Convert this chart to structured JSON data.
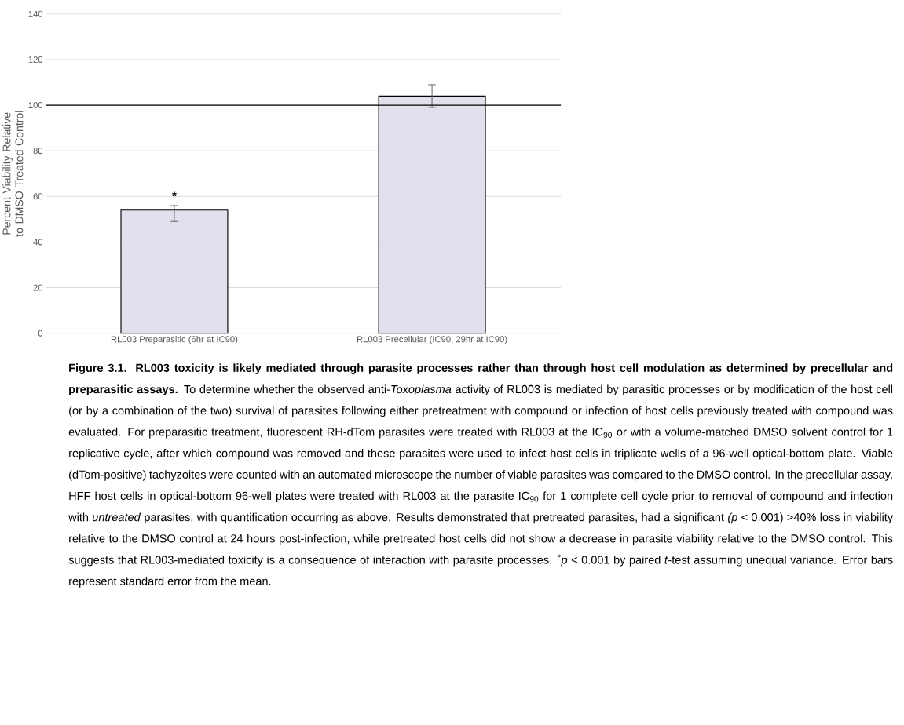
{
  "chart_data": {
    "type": "bar",
    "ylabel": "Percent Viability Relative to DMSO-Treated Control",
    "categories": [
      "RL003 Preparasitic (6hr at IC90)",
      "RL003 Precellular (IC90, 29hr at IC90)"
    ],
    "values": [
      54,
      104
    ],
    "color": "#e4dfec",
    "errors": [
      [
        49,
        56
      ],
      [
        99,
        109
      ]
    ],
    "ylim": [
      0,
      140
    ],
    "yticks": [
      0,
      20,
      40,
      60,
      80,
      100,
      120,
      140
    ],
    "grid": "y",
    "ref_lines": [
      {
        "axis": "y",
        "value": 100,
        "color": "#000000"
      }
    ],
    "annotations": [
      "*",
      "**Figure 3.1. RL003 toxicity is likely mediated through parasite processes rather than through host cell modulation as determined by precellular and preparasitic assays.** To determine whether the observed anti-*Toxoplasma* activity of RL003 is mediated by parasitic processes or by modification of the host cell (or by a combination of the two) survival of parasites following either pretreatment with compound or infection of host cells previously treated with compound was evaluated. For preparasitic treatment, fluorescent RH-dTom parasites were treated with RL003 at the IC$_{90}$ or with a volume-matched DMSO solvent control for 1 replicative cycle, after which compound was removed and these parasites were used to infect host cells in triplicate wells of a 96-well optical-bottom plate. Viable (dTom-positive) tachyzoites were counted with an automated microscope the number of viable parasites was compared to the DMSO control. In the precellular assay, HFF host cells in optical-bottom 96-well plates were treated with RL003 at the parasite IC$_{90}$ for 1 complete cell cycle prior to removal of compound and infection with *untreated* parasites, with quantification occurring as above. Results demonstrated that pretreated parasites, had a significant *(p* < 0.001) >40% loss in viability relative to the DMSO control at 24 hours post-infection, while pretreated host cells did not show a decrease in parasite viability relative to the DMSO control. This suggests that RL003-mediated toxicity is a consequence of interaction with parasite processes. $^{*}$*p* < 0.001 by paired *t*-test assuming unequal variance. Error bars represent standard error from the mean."
    ]
  }
}
